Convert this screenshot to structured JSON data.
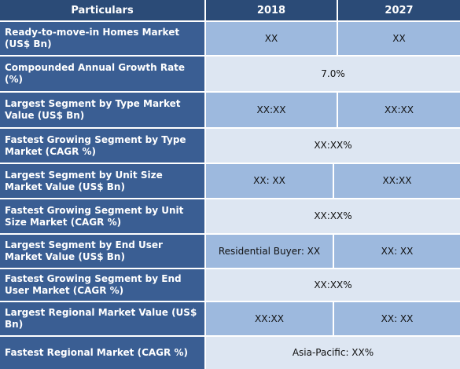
{
  "header": {
    "col_particulars": "Particulars",
    "col_2018": "2018",
    "col_2027": "2027"
  },
  "rows": [
    {
      "label": "Ready-to-move-in Homes Market (US$ Bn)",
      "v2018": "XX",
      "v2027": "XX"
    },
    {
      "label": "Compounded Annual Growth Rate (%)",
      "merged": "7.0%"
    },
    {
      "label": "Largest Segment by Type Market Value (US$ Bn)",
      "v2018": "XX:XX",
      "v2027": "XX:XX"
    },
    {
      "label": "Fastest Growing Segment by Type Market (CAGR %)",
      "merged": "XX:XX%"
    },
    {
      "label": "Largest Segment by Unit Size Market Value (US$ Bn)",
      "v2018": "XX: XX",
      "v2027": "XX:XX"
    },
    {
      "label": "Fastest Growing Segment by Unit Size Market (CAGR %)",
      "merged": "XX:XX%"
    },
    {
      "label": "Largest Segment by End User Market Value (US$ Bn)",
      "v2018": "Residential Buyer: XX",
      "v2027": "XX: XX"
    },
    {
      "label": "Fastest Growing Segment by End User Market (CAGR %)",
      "merged": "XX:XX%"
    },
    {
      "label": "Largest Regional Market Value (US$ Bn)",
      "v2018": "XX:XX",
      "v2027": "XX: XX"
    },
    {
      "label": "Fastest Regional Market (CAGR %)",
      "merged": "Asia-Pacific: XX%"
    }
  ]
}
